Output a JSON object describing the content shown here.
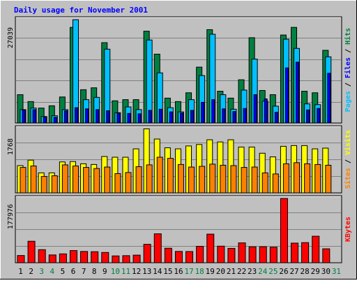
{
  "colors": {
    "background": "#c0c0c0",
    "grid": "#808080",
    "hits": "#00c0ff",
    "files": "#0000ff",
    "pages": "#008040",
    "sites": "#ff8000",
    "visits": "#ffff00",
    "kbytes": "#ff0000",
    "title": "#0000ff",
    "weekend": "#008040"
  },
  "chart_data": [
    {
      "type": "bar",
      "title": "Daily usage for November 2001",
      "ylabel_parts": [
        "Pages",
        "Files",
        "Hits"
      ],
      "ymax_label": "27039",
      "ylim": [
        0,
        27039
      ],
      "categories": [
        "1",
        "2",
        "3",
        "4",
        "5",
        "6",
        "7",
        "8",
        "9",
        "10",
        "11",
        "12",
        "13",
        "14",
        "15",
        "16",
        "17",
        "18",
        "19",
        "20",
        "21",
        "22",
        "23",
        "24",
        "25",
        "26",
        "27",
        "28",
        "29",
        "30",
        "31"
      ],
      "weekend_days": [
        "3",
        "4",
        "10",
        "11",
        "17",
        "18",
        "24",
        "25",
        "31"
      ],
      "series": [
        {
          "name": "Hits",
          "values": [
            7400,
            5600,
            3900,
            4500,
            6800,
            25000,
            8700,
            9200,
            21000,
            5800,
            6100,
            6100,
            24000,
            18000,
            6500,
            5600,
            7900,
            14600,
            24400,
            8300,
            6500,
            11300,
            22300,
            8500,
            7400,
            23000,
            25000,
            8300,
            7900,
            19000,
            0
          ]
        },
        {
          "name": "Files",
          "values": [
            3500,
            3900,
            1700,
            1900,
            3500,
            27000,
            6100,
            6700,
            19300,
            2700,
            4200,
            3500,
            21700,
            13100,
            4000,
            2900,
            6100,
            12400,
            23200,
            7400,
            3600,
            8600,
            16700,
            5700,
            4400,
            21900,
            19500,
            5000,
            4800,
            17300,
            0
          ]
        },
        {
          "name": "Pages",
          "values": [
            3400,
            3500,
            1500,
            1500,
            3200,
            4000,
            3700,
            3500,
            3200,
            2600,
            2500,
            2400,
            3300,
            3600,
            2900,
            2600,
            3300,
            5400,
            6100,
            3700,
            3000,
            3800,
            7400,
            6300,
            2800,
            14400,
            15900,
            3400,
            3800,
            13000,
            0
          ]
        }
      ]
    },
    {
      "type": "bar",
      "ylabel_parts": [
        "Sites",
        "Visits"
      ],
      "ymax_label": "1768",
      "ylim": [
        0,
        1768
      ],
      "series": [
        {
          "name": "Visits",
          "values": [
            750,
            900,
            550,
            550,
            850,
            860,
            800,
            780,
            1000,
            980,
            980,
            1210,
            1760,
            1480,
            1240,
            1210,
            1290,
            1330,
            1460,
            1400,
            1460,
            1260,
            1260,
            1090,
            990,
            1280,
            1300,
            1300,
            1210,
            1230,
            0
          ]
        },
        {
          "name": "Sites",
          "values": [
            700,
            740,
            450,
            470,
            770,
            740,
            700,
            670,
            710,
            530,
            560,
            720,
            770,
            980,
            950,
            780,
            710,
            730,
            790,
            760,
            750,
            700,
            710,
            550,
            520,
            800,
            830,
            800,
            780,
            760,
            0
          ]
        }
      ]
    },
    {
      "type": "bar",
      "ylabel_parts": [
        "KBytes"
      ],
      "ymax_label": "177976",
      "ylim": [
        0,
        177976
      ],
      "series": [
        {
          "name": "KBytes",
          "values": [
            20000,
            59500,
            36200,
            21600,
            24500,
            33700,
            31200,
            30500,
            28400,
            18900,
            19600,
            21100,
            51000,
            80100,
            40200,
            31300,
            31000,
            45500,
            79200,
            45900,
            39800,
            55000,
            44100,
            44300,
            43100,
            177900,
            54300,
            55700,
            73400,
            38600,
            0
          ]
        }
      ]
    }
  ]
}
